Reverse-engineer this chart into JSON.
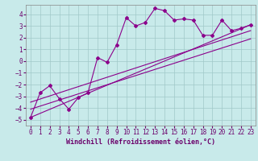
{
  "xlabel": "Windchill (Refroidissement éolien,°C)",
  "ylabel": "",
  "background_color": "#c8eaea",
  "line_color": "#8b008b",
  "grid_color": "#a0c8c8",
  "xlim": [
    -0.5,
    23.5
  ],
  "ylim": [
    -5.5,
    4.8
  ],
  "xticks": [
    0,
    1,
    2,
    3,
    4,
    5,
    6,
    7,
    8,
    9,
    10,
    11,
    12,
    13,
    14,
    15,
    16,
    17,
    18,
    19,
    20,
    21,
    22,
    23
  ],
  "yticks": [
    -5,
    -4,
    -3,
    -2,
    -1,
    0,
    1,
    2,
    3,
    4
  ],
  "series1_x": [
    0,
    1,
    2,
    3,
    4,
    5,
    6,
    7,
    8,
    9,
    10,
    11,
    12,
    13,
    14,
    15,
    16,
    17,
    18,
    19,
    20,
    21,
    22,
    23
  ],
  "series1_y": [
    -4.8,
    -2.7,
    -2.1,
    -3.2,
    -4.1,
    -3.1,
    -2.7,
    0.3,
    -0.1,
    1.4,
    3.7,
    3.0,
    3.3,
    4.5,
    4.3,
    3.5,
    3.6,
    3.5,
    2.2,
    2.2,
    3.5,
    2.6,
    2.8,
    3.1
  ],
  "series2_x": [
    0,
    23
  ],
  "series2_y": [
    -4.8,
    3.1
  ],
  "series3_x": [
    0,
    23
  ],
  "series3_y": [
    -3.5,
    2.6
  ],
  "series4_x": [
    0,
    23
  ],
  "series4_y": [
    -4.1,
    1.9
  ],
  "tick_fontsize": 5.5,
  "xlabel_fontsize": 6.0,
  "marker_size": 2.0,
  "line_width": 0.8
}
